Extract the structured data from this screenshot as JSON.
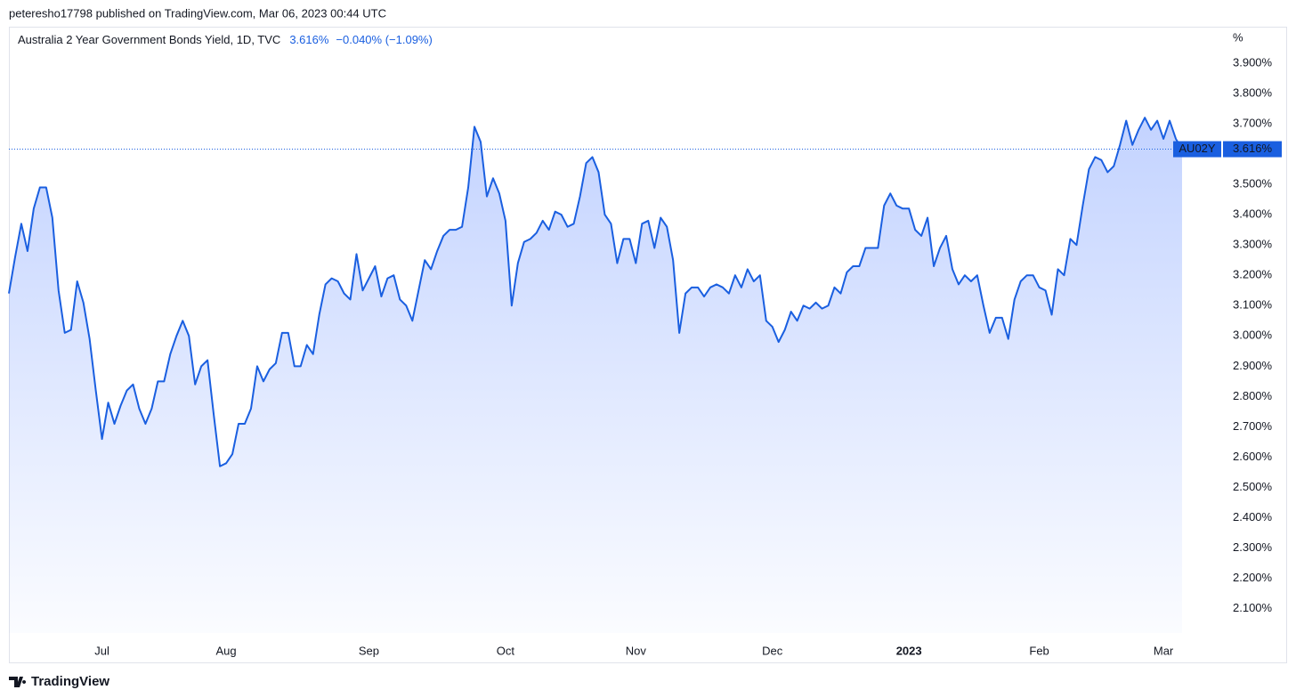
{
  "published": "peteresho17798 published on TradingView.com, Mar 06, 2023 00:44 UTC",
  "brand": "TradingView",
  "chart_data": {
    "type": "area",
    "title": "Australia 2 Year Government Bonds Yield, 1D, TVC",
    "last_label": "3.616%",
    "change_label": "−0.040% (−1.09%)",
    "y_unit": "%",
    "categories": [
      null,
      null,
      null,
      null,
      null,
      null,
      null,
      null,
      null,
      null,
      null,
      null,
      null,
      null,
      null,
      "Jul",
      null,
      null,
      null,
      null,
      null,
      null,
      null,
      null,
      null,
      null,
      null,
      null,
      null,
      null,
      null,
      null,
      null,
      null,
      null,
      "Aug",
      null,
      null,
      null,
      null,
      null,
      null,
      null,
      null,
      null,
      null,
      null,
      null,
      null,
      null,
      null,
      null,
      null,
      null,
      null,
      null,
      null,
      null,
      "Sep",
      null,
      null,
      null,
      null,
      null,
      null,
      null,
      null,
      null,
      null,
      null,
      null,
      null,
      null,
      null,
      null,
      null,
      null,
      null,
      null,
      null,
      "Oct",
      null,
      null,
      null,
      null,
      null,
      null,
      null,
      null,
      null,
      null,
      null,
      null,
      null,
      null,
      null,
      null,
      null,
      null,
      null,
      null,
      "Nov",
      null,
      null,
      null,
      null,
      null,
      null,
      null,
      null,
      null,
      null,
      null,
      null,
      null,
      null,
      null,
      null,
      null,
      null,
      null,
      null,
      null,
      "Dec",
      null,
      null,
      null,
      null,
      null,
      null,
      null,
      null,
      null,
      null,
      null,
      null,
      null,
      null,
      null,
      null,
      null,
      null,
      null,
      null,
      null,
      "2023",
      null,
      null,
      null,
      null,
      null,
      null,
      null,
      null,
      null,
      null,
      null,
      null,
      null,
      null,
      null,
      null,
      null,
      null,
      null,
      null,
      "Feb",
      null,
      null,
      null,
      null,
      null,
      null,
      null,
      null,
      null,
      null,
      null,
      null,
      null,
      null,
      null,
      null,
      null,
      null,
      null,
      "Mar",
      null,
      null,
      null
    ],
    "series": [
      {
        "name": "AU02Y",
        "color": "#1a5fe0",
        "values": [
          3.14,
          3.26,
          3.37,
          3.28,
          3.42,
          3.49,
          3.49,
          3.39,
          3.15,
          3.01,
          3.02,
          3.18,
          3.11,
          2.99,
          2.82,
          2.66,
          2.78,
          2.71,
          2.77,
          2.82,
          2.84,
          2.76,
          2.71,
          2.76,
          2.85,
          2.85,
          2.94,
          3.0,
          3.05,
          3.0,
          2.84,
          2.9,
          2.92,
          2.74,
          2.57,
          2.58,
          2.61,
          2.71,
          2.71,
          2.76,
          2.9,
          2.85,
          2.89,
          2.91,
          3.01,
          3.01,
          2.9,
          2.9,
          2.97,
          2.94,
          3.07,
          3.17,
          3.19,
          3.18,
          3.14,
          3.12,
          3.27,
          3.15,
          3.19,
          3.23,
          3.13,
          3.19,
          3.2,
          3.12,
          3.1,
          3.05,
          3.15,
          3.25,
          3.22,
          3.28,
          3.33,
          3.35,
          3.35,
          3.36,
          3.49,
          3.69,
          3.64,
          3.46,
          3.52,
          3.47,
          3.38,
          3.1,
          3.24,
          3.31,
          3.32,
          3.34,
          3.38,
          3.35,
          3.41,
          3.4,
          3.36,
          3.37,
          3.46,
          3.57,
          3.59,
          3.54,
          3.4,
          3.37,
          3.24,
          3.32,
          3.32,
          3.24,
          3.37,
          3.38,
          3.29,
          3.39,
          3.36,
          3.25,
          3.01,
          3.14,
          3.16,
          3.16,
          3.13,
          3.16,
          3.17,
          3.16,
          3.14,
          3.2,
          3.16,
          3.22,
          3.18,
          3.2,
          3.05,
          3.03,
          2.98,
          3.02,
          3.08,
          3.05,
          3.1,
          3.09,
          3.11,
          3.09,
          3.1,
          3.16,
          3.14,
          3.21,
          3.23,
          3.23,
          3.29,
          3.29,
          3.29,
          3.43,
          3.47,
          3.43,
          3.42,
          3.42,
          3.35,
          3.33,
          3.39,
          3.23,
          3.29,
          3.33,
          3.22,
          3.17,
          3.2,
          3.18,
          3.2,
          3.1,
          3.01,
          3.06,
          3.06,
          2.99,
          3.12,
          3.18,
          3.2,
          3.2,
          3.16,
          3.15,
          3.07,
          3.22,
          3.2,
          3.32,
          3.3,
          3.43,
          3.55,
          3.59,
          3.58,
          3.54,
          3.56,
          3.63,
          3.71,
          3.63,
          3.68,
          3.72,
          3.68,
          3.71,
          3.65,
          3.71,
          3.65,
          3.616
        ]
      }
    ],
    "ylim": [
      2.02,
      4.02
    ],
    "yticks": [
      {
        "value": 2.1,
        "label": "2.100%"
      },
      {
        "value": 2.2,
        "label": "2.200%"
      },
      {
        "value": 2.3,
        "label": "2.300%"
      },
      {
        "value": 2.4,
        "label": "2.400%"
      },
      {
        "value": 2.5,
        "label": "2.500%"
      },
      {
        "value": 2.6,
        "label": "2.600%"
      },
      {
        "value": 2.7,
        "label": "2.700%"
      },
      {
        "value": 2.8,
        "label": "2.800%"
      },
      {
        "value": 2.9,
        "label": "2.900%"
      },
      {
        "value": 3.0,
        "label": "3.000%"
      },
      {
        "value": 3.1,
        "label": "3.100%"
      },
      {
        "value": 3.2,
        "label": "3.200%"
      },
      {
        "value": 3.3,
        "label": "3.300%"
      },
      {
        "value": 3.4,
        "label": "3.400%"
      },
      {
        "value": 3.5,
        "label": "3.500%"
      },
      {
        "value": 3.6,
        "label": "3.600%"
      },
      {
        "value": 3.7,
        "label": "3.700%"
      },
      {
        "value": 3.8,
        "label": "3.800%"
      },
      {
        "value": 3.9,
        "label": "3.900%"
      }
    ],
    "price_line": {
      "value": 3.616,
      "label": "3.616%"
    },
    "grid": false
  }
}
